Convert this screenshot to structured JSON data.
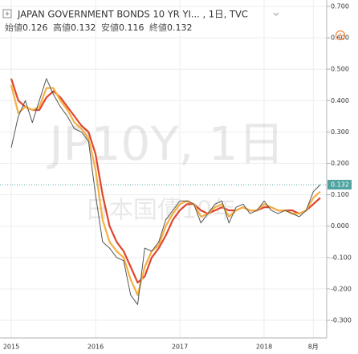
{
  "chart_data": {
    "type": "line",
    "title": "JAPAN GOVERNMENT BONDS 10 YR YI... , 1日, TVC",
    "ohlc": [
      {
        "label": "始値",
        "value": 0.126
      },
      {
        "label": "高値",
        "value": 0.132
      },
      {
        "label": "安値",
        "value": 0.116
      },
      {
        "label": "終値",
        "value": 0.132
      }
    ],
    "watermark": [
      "JP10Y, 1日",
      "日本国債10年"
    ],
    "categories": [
      "2015",
      null,
      null,
      null,
      null,
      null,
      null,
      null,
      null,
      null,
      null,
      null,
      "2016",
      null,
      null,
      null,
      null,
      null,
      null,
      null,
      null,
      null,
      null,
      null,
      "2017",
      null,
      null,
      null,
      null,
      null,
      null,
      null,
      null,
      null,
      null,
      null,
      "2018",
      null,
      null,
      null,
      null,
      null,
      null,
      "8月",
      null
    ],
    "series": [
      {
        "color": "#555555",
        "values": [
          0.25,
          0.35,
          0.4,
          0.33,
          0.4,
          0.47,
          0.42,
          0.38,
          0.35,
          0.31,
          0.3,
          0.27,
          0.1,
          -0.05,
          -0.07,
          -0.1,
          -0.11,
          -0.22,
          -0.25,
          -0.07,
          -0.08,
          -0.05,
          0.02,
          0.05,
          0.08,
          0.08,
          0.07,
          0.01,
          0.04,
          0.07,
          0.08,
          0.01,
          0.06,
          0.07,
          0.04,
          0.05,
          0.08,
          0.05,
          0.04,
          0.05,
          0.04,
          0.03,
          0.05,
          0.11,
          0.132
        ]
      },
      {
        "color": "#f5b041",
        "values": [
          0.45,
          0.36,
          0.38,
          0.37,
          0.38,
          0.44,
          0.44,
          0.4,
          0.37,
          0.33,
          0.31,
          0.28,
          0.18,
          0.02,
          -0.05,
          -0.08,
          -0.1,
          -0.17,
          -0.22,
          -0.13,
          -0.08,
          -0.06,
          0.0,
          0.04,
          0.07,
          0.08,
          0.07,
          0.03,
          0.04,
          0.06,
          0.07,
          0.03,
          0.05,
          0.06,
          0.05,
          0.05,
          0.07,
          0.06,
          0.05,
          0.05,
          0.04,
          0.04,
          0.05,
          0.09,
          0.11
        ]
      },
      {
        "color": "#e0452e",
        "values": [
          0.47,
          0.4,
          0.38,
          0.37,
          0.37,
          0.41,
          0.43,
          0.41,
          0.38,
          0.35,
          0.32,
          0.3,
          0.23,
          0.1,
          0.0,
          -0.05,
          -0.08,
          -0.13,
          -0.18,
          -0.16,
          -0.1,
          -0.07,
          -0.03,
          0.02,
          0.05,
          0.07,
          0.07,
          0.05,
          0.04,
          0.05,
          0.06,
          0.05,
          0.05,
          0.06,
          0.05,
          0.05,
          0.06,
          0.06,
          0.05,
          0.05,
          0.05,
          0.04,
          0.05,
          0.07,
          0.09
        ]
      }
    ],
    "ylim": [
      -0.324,
      0.712
    ],
    "yticks": [
      {
        "value": -0.3,
        "label": "-0.300"
      },
      {
        "value": -0.2,
        "label": "-0.200"
      },
      {
        "value": -0.1,
        "label": "-0.100"
      },
      {
        "value": 0,
        "label": "0.000"
      },
      {
        "value": 0.1,
        "label": "0.100"
      },
      {
        "value": 0.2,
        "label": "0.200"
      },
      {
        "value": 0.3,
        "label": "0.300"
      },
      {
        "value": 0.4,
        "label": "0.400"
      },
      {
        "value": 0.5,
        "label": "0.500"
      },
      {
        "value": 0.6,
        "label": "0.600"
      },
      {
        "value": 0.7,
        "label": "0.700"
      }
    ],
    "grid": true,
    "last_price_color": "#4fa3a0"
  }
}
